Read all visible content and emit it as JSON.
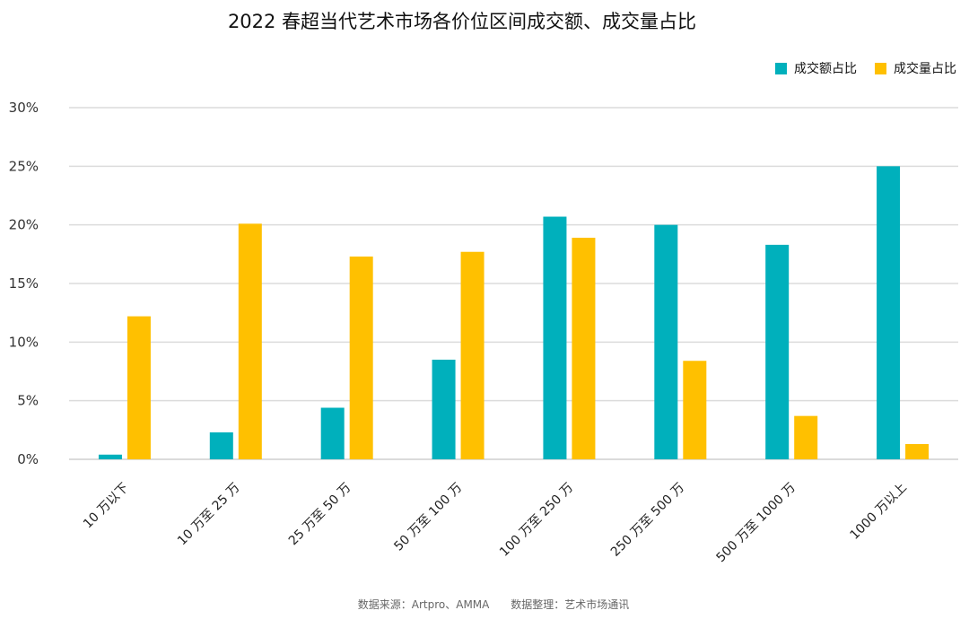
{
  "chart_data": {
    "type": "bar",
    "title": "2022 春超当代艺术市场各价位区间成交额、成交量占比",
    "categories": [
      "10 万以下",
      "10 万至 25 万",
      "25 万至 50 万",
      "50 万至 100 万",
      "100 万至 250 万",
      "250 万至 500 万",
      "500 万至 1000 万",
      "1000 万以上"
    ],
    "series": [
      {
        "name": "成交额占比",
        "color": "#00B0BC",
        "values": [
          0.4,
          2.3,
          4.4,
          8.5,
          20.7,
          20.0,
          18.3,
          25.0
        ]
      },
      {
        "name": "成交量占比",
        "color": "#FFC000",
        "values": [
          12.2,
          20.1,
          17.3,
          17.7,
          18.9,
          8.4,
          3.7,
          1.3
        ]
      }
    ],
    "yticks": [
      "0%",
      "5%",
      "10%",
      "15%",
      "20%",
      "25%",
      "30%"
    ],
    "ylim": [
      0,
      30
    ],
    "grid": true,
    "legend_position": "top-right",
    "source_left": "数据来源：Artpro、AMMA",
    "source_right": "数据整理：艺术市场通讯"
  }
}
